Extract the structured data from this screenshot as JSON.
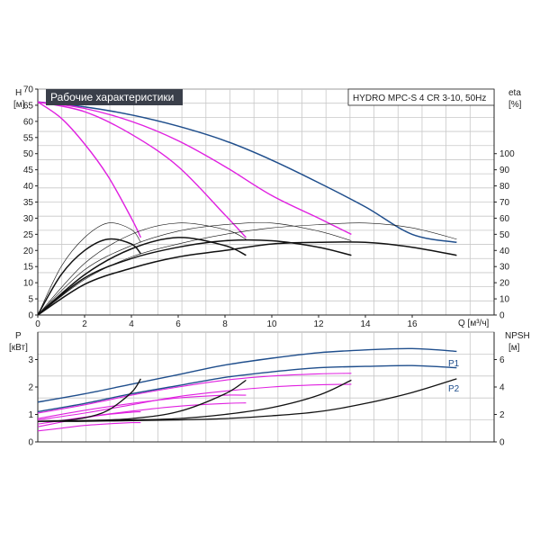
{
  "title": "Рабочие характеристики",
  "pump_label": "HYDRO MPC-S 4 CR 3-10, 50Hz",
  "colors": {
    "blue": "#1f4e8c",
    "magenta": "#e020e0",
    "black": "#111111",
    "grid": "#c8c8c8",
    "title_bg": "#3a3f4a"
  },
  "chart_data": [
    {
      "type": "line",
      "name": "upper",
      "ylabel_top": "H",
      "ylabel_unit": "[м]",
      "y2label_top": "eta",
      "y2label_unit": "[%]",
      "xlabel": "Q [м³/ч]",
      "xlim": [
        0,
        19.5
      ],
      "ylim": [
        0,
        70
      ],
      "y2lim": [
        0,
        140
      ],
      "xticks": [
        0,
        2,
        4,
        6,
        8,
        10,
        12,
        14,
        16
      ],
      "yticks": [
        0,
        5,
        10,
        15,
        20,
        25,
        30,
        35,
        40,
        45,
        50,
        55,
        60,
        65,
        70
      ],
      "y2ticks": [
        0,
        10,
        20,
        30,
        40,
        50,
        60,
        70,
        80,
        90,
        100
      ],
      "grid": true,
      "series": [
        {
          "kind": "head",
          "color": "blue",
          "x": [
            0,
            2,
            4,
            6,
            8,
            10,
            12,
            14,
            16,
            17.9
          ],
          "y": [
            66,
            64.5,
            62,
            58.5,
            54,
            48,
            41,
            33.5,
            25,
            22.5
          ]
        },
        {
          "kind": "head",
          "color": "magenta",
          "x": [
            0,
            1,
            2,
            3,
            4,
            4.4
          ],
          "y": [
            66,
            61,
            53,
            43,
            30,
            24
          ]
        },
        {
          "kind": "head",
          "color": "magenta",
          "x": [
            0,
            2,
            4,
            6,
            8,
            8.9
          ],
          "y": [
            66,
            63,
            56,
            46,
            31,
            24
          ]
        },
        {
          "kind": "head",
          "color": "magenta",
          "x": [
            0,
            2,
            4,
            6,
            8,
            10,
            12,
            13.4
          ],
          "y": [
            66,
            64,
            60,
            54,
            46,
            37,
            30,
            25
          ]
        },
        {
          "kind": "eff",
          "color": "black",
          "heavy": true,
          "x": [
            0,
            1,
            2,
            3,
            4,
            4.4
          ],
          "y": [
            0,
            25,
            40,
            47,
            44,
            38
          ]
        },
        {
          "kind": "eff",
          "color": "black",
          "heavy": true,
          "x": [
            0,
            2,
            4,
            6,
            8,
            8.9
          ],
          "y": [
            0,
            25,
            41,
            48,
            43,
            37
          ]
        },
        {
          "kind": "eff",
          "color": "black",
          "heavy": true,
          "x": [
            0,
            2,
            4,
            6,
            8,
            10,
            12,
            13.4
          ],
          "y": [
            0,
            23,
            35,
            42,
            46,
            46,
            42,
            37
          ]
        },
        {
          "kind": "eff",
          "color": "black",
          "heavy": true,
          "x": [
            0,
            2,
            4,
            6,
            8,
            10,
            12,
            14,
            16,
            17.9
          ],
          "y": [
            0,
            19,
            29,
            36,
            40,
            44,
            45,
            45,
            42,
            37
          ]
        },
        {
          "kind": "eff",
          "color": "black",
          "heavy": false,
          "x": [
            0,
            1,
            2,
            3,
            4,
            4.4
          ],
          "y": [
            0,
            30,
            48,
            57,
            53,
            45
          ]
        },
        {
          "kind": "eff",
          "color": "black",
          "heavy": false,
          "x": [
            0,
            2,
            4,
            6,
            8,
            8.9
          ],
          "y": [
            0,
            32,
            50,
            57,
            53,
            47
          ]
        },
        {
          "kind": "eff",
          "color": "black",
          "heavy": false,
          "x": [
            0,
            2,
            4,
            6,
            8,
            10,
            12,
            13.4
          ],
          "y": [
            0,
            28,
            43,
            52,
            56,
            57,
            52,
            46
          ]
        },
        {
          "kind": "eff",
          "color": "black",
          "heavy": false,
          "x": [
            0,
            2,
            4,
            6,
            8,
            10,
            12,
            14,
            16,
            17.9
          ],
          "y": [
            0,
            22,
            36,
            44,
            50,
            54,
            56,
            57,
            54,
            47
          ]
        }
      ]
    },
    {
      "type": "line",
      "name": "lower",
      "ylabel_top": "P",
      "ylabel_unit": "[кВт]",
      "y2label_top": "NPSH",
      "y2label_unit": "[м]",
      "xlim": [
        0,
        19.5
      ],
      "ylim": [
        0,
        4
      ],
      "y2lim": [
        0,
        8
      ],
      "yticks": [
        0,
        1,
        2,
        3
      ],
      "y2ticks": [
        0,
        2,
        4,
        6
      ],
      "grid": true,
      "series": [
        {
          "kind": "p1",
          "color": "blue",
          "label": "P1",
          "x": [
            0,
            2,
            4,
            6,
            8,
            10,
            12,
            14,
            16,
            17.9
          ],
          "y": [
            1.45,
            1.75,
            2.1,
            2.45,
            2.8,
            3.05,
            3.25,
            3.35,
            3.4,
            3.3
          ]
        },
        {
          "kind": "p2",
          "color": "blue",
          "label": "P2",
          "x": [
            0,
            2,
            4,
            6,
            8,
            10,
            12,
            14,
            16,
            17.9
          ],
          "y": [
            1.1,
            1.4,
            1.75,
            2.05,
            2.35,
            2.55,
            2.7,
            2.75,
            2.78,
            2.7
          ]
        },
        {
          "kind": "power",
          "color": "magenta",
          "x": [
            0,
            2,
            4,
            6,
            8,
            10,
            12,
            13.4
          ],
          "y": [
            1.05,
            1.35,
            1.7,
            2.0,
            2.25,
            2.4,
            2.48,
            2.5
          ]
        },
        {
          "kind": "power",
          "color": "magenta",
          "x": [
            0,
            2,
            4,
            6,
            8,
            10,
            12,
            13.4
          ],
          "y": [
            0.8,
            1.05,
            1.35,
            1.65,
            1.85,
            2.0,
            2.08,
            2.1
          ]
        },
        {
          "kind": "power",
          "color": "magenta",
          "x": [
            0,
            2,
            4,
            6,
            8,
            8.9
          ],
          "y": [
            0.85,
            1.15,
            1.4,
            1.6,
            1.7,
            1.7
          ]
        },
        {
          "kind": "power",
          "color": "magenta",
          "x": [
            0,
            2,
            4,
            6,
            8,
            8.9
          ],
          "y": [
            0.65,
            0.9,
            1.12,
            1.3,
            1.4,
            1.42
          ]
        },
        {
          "kind": "power",
          "color": "magenta",
          "x": [
            0,
            1,
            2,
            3,
            4,
            4.4
          ],
          "y": [
            0.55,
            0.72,
            0.88,
            1.0,
            1.08,
            1.1
          ]
        },
        {
          "kind": "power",
          "color": "magenta",
          "x": [
            0,
            1,
            2,
            3,
            4,
            4.4
          ],
          "y": [
            0.4,
            0.5,
            0.6,
            0.66,
            0.7,
            0.7
          ]
        },
        {
          "kind": "npsh",
          "color": "black",
          "x": [
            0,
            2,
            4,
            6,
            8,
            10,
            12,
            14,
            16,
            17.9
          ],
          "y": [
            1.5,
            1.5,
            1.55,
            1.6,
            1.7,
            1.9,
            2.2,
            2.8,
            3.6,
            4.6
          ]
        },
        {
          "kind": "npsh",
          "color": "black",
          "x": [
            0,
            2,
            4,
            6,
            8,
            10,
            12,
            13.4
          ],
          "y": [
            1.5,
            1.55,
            1.6,
            1.7,
            2.0,
            2.5,
            3.4,
            4.5
          ]
        },
        {
          "kind": "npsh",
          "color": "black",
          "x": [
            0,
            2,
            4,
            6,
            8,
            8.9
          ],
          "y": [
            1.5,
            1.55,
            1.7,
            2.2,
            3.5,
            4.5
          ]
        },
        {
          "kind": "npsh",
          "color": "black",
          "x": [
            0,
            1,
            2,
            3,
            4,
            4.4
          ],
          "y": [
            1.5,
            1.55,
            1.75,
            2.3,
            3.6,
            4.6
          ]
        }
      ]
    }
  ]
}
